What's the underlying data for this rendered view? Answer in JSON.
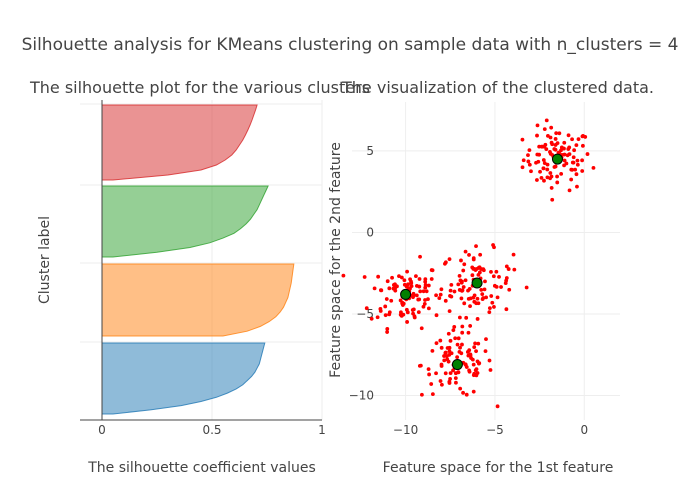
{
  "title": "Silhouette analysis for KMeans clustering on sample data with n_clusters = 4",
  "chart_data": [
    {
      "type": "area",
      "title": "The silhouette plot for the various clusters",
      "xlabel": "The silhouette coefficient values",
      "ylabel": "Cluster label",
      "xlim": [
        -0.1,
        1
      ],
      "xticks": [
        0,
        0.5,
        1
      ],
      "xtick_labels": [
        "0",
        "0.5",
        "1"
      ],
      "grid": true,
      "series": [
        {
          "cluster": 0,
          "color": "#1f77b4",
          "sorted_values": [
            0.05,
            0.22,
            0.36,
            0.45,
            0.52,
            0.57,
            0.61,
            0.64,
            0.66,
            0.68,
            0.695,
            0.705,
            0.715,
            0.72,
            0.725,
            0.73,
            0.735,
            0.74
          ]
        },
        {
          "cluster": 1,
          "color": "#ff7f0e",
          "sorted_values": [
            0.55,
            0.66,
            0.72,
            0.76,
            0.79,
            0.81,
            0.825,
            0.835,
            0.845,
            0.85,
            0.855,
            0.86,
            0.863,
            0.866,
            0.869,
            0.872
          ]
        },
        {
          "cluster": 2,
          "color": "#2ca02c",
          "sorted_values": [
            0.05,
            0.25,
            0.4,
            0.49,
            0.55,
            0.6,
            0.63,
            0.655,
            0.675,
            0.69,
            0.705,
            0.715,
            0.725,
            0.735,
            0.745,
            0.755
          ]
        },
        {
          "cluster": 3,
          "color": "#d62728",
          "sorted_values": [
            0.05,
            0.3,
            0.45,
            0.52,
            0.56,
            0.59,
            0.61,
            0.625,
            0.64,
            0.652,
            0.663,
            0.673,
            0.682,
            0.69,
            0.698,
            0.705
          ]
        }
      ]
    },
    {
      "type": "scatter",
      "title": "The visualization of the clustered data.",
      "xlabel": "Feature space for the 1st feature",
      "ylabel": "Feature space for the 2nd feature",
      "xlim": [
        -13,
        2
      ],
      "ylim": [
        -11.5,
        8
      ],
      "xticks": [
        -10,
        -5,
        0
      ],
      "xtick_labels": [
        "−10",
        "−5",
        "0"
      ],
      "yticks": [
        -10,
        -5,
        0,
        5
      ],
      "ytick_labels": [
        "−10",
        "−5",
        "0",
        "5"
      ],
      "grid": true,
      "point_color": "#ff0000",
      "center_color": "#008000",
      "centers": [
        {
          "x": -1.5,
          "y": 4.5
        },
        {
          "x": -10.0,
          "y": -3.8
        },
        {
          "x": -6.0,
          "y": -3.1
        },
        {
          "x": -7.1,
          "y": -8.1
        }
      ],
      "clusters": [
        {
          "center": [
            -1.5,
            4.5
          ],
          "spread": [
            0.95,
            0.95
          ],
          "n": 100
        },
        {
          "center": [
            -10.0,
            -3.8
          ],
          "spread": [
            1.0,
            1.0
          ],
          "n": 100
        },
        {
          "center": [
            -6.0,
            -3.1
          ],
          "spread": [
            1.0,
            1.0
          ],
          "n": 100
        },
        {
          "center": [
            -7.1,
            -8.1
          ],
          "spread": [
            1.0,
            1.0
          ],
          "n": 100
        }
      ]
    }
  ]
}
